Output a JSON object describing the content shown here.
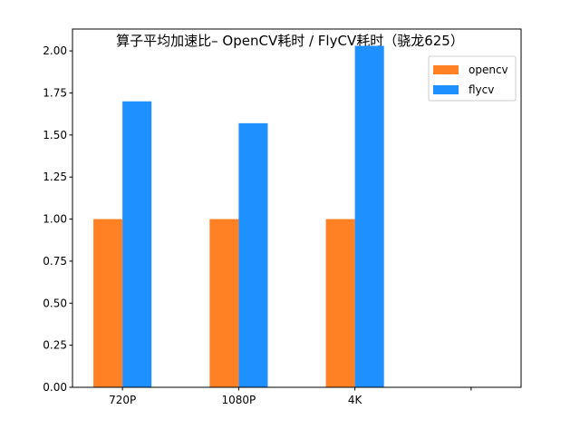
{
  "chart_data": {
    "type": "bar",
    "title": "算子平均加速比– OpenCV耗时 / FlyCV耗时（骁龙625）",
    "xlabel": "",
    "ylabel": "",
    "categories": [
      "720P",
      "1080P",
      "4K",
      ""
    ],
    "series": [
      {
        "name": "opencv",
        "color": "#ff8124",
        "values": [
          1.0,
          1.0,
          1.0,
          null
        ]
      },
      {
        "name": "flycv",
        "color": "#1e90ff",
        "values": [
          1.7,
          1.57,
          2.03,
          null
        ]
      }
    ],
    "ylim": [
      0,
      2.13
    ],
    "xlim": [
      -0.43,
      3.43
    ],
    "yticks": [
      "0.00",
      "0.25",
      "0.50",
      "0.75",
      "1.00",
      "1.25",
      "1.50",
      "1.75",
      "2.00"
    ],
    "grid": false,
    "legend_position": "top-right"
  }
}
